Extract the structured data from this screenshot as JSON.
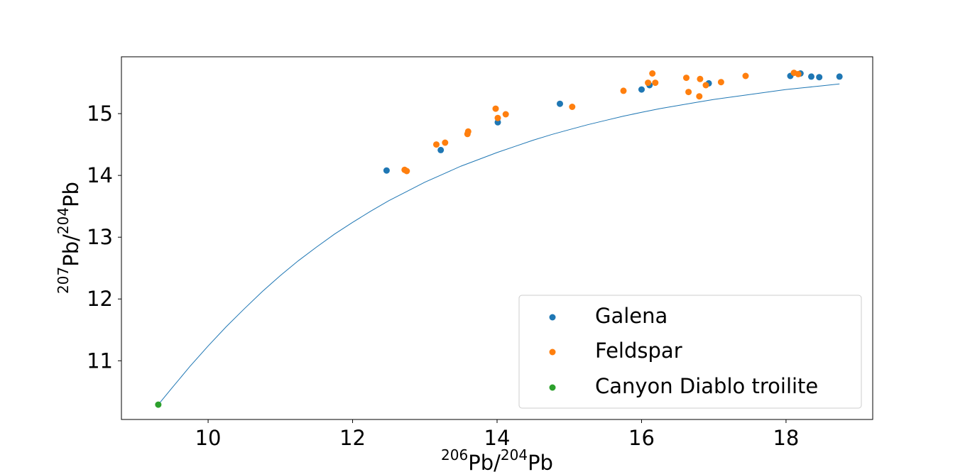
{
  "chart_data": {
    "type": "scatter",
    "xlabel": {
      "iso_top": "206",
      "base_top": "Pb/",
      "iso_bottom": "204",
      "base_bottom": "Pb"
    },
    "ylabel": {
      "iso_top": "207",
      "base_top": "Pb/",
      "iso_bottom": "204",
      "base_bottom": "Pb"
    },
    "xlim": [
      8.8,
      19.2
    ],
    "ylim": [
      10.05,
      15.92
    ],
    "x_ticks": [
      10,
      12,
      14,
      16,
      18
    ],
    "y_ticks": [
      11,
      12,
      13,
      14,
      15
    ],
    "grid": false,
    "legend_position": "lower-right",
    "series": [
      {
        "name": "Galena",
        "color": "#1f77b4",
        "points": [
          [
            12.47,
            14.08
          ],
          [
            13.22,
            14.41
          ],
          [
            14.01,
            14.86
          ],
          [
            14.87,
            15.16
          ],
          [
            16.0,
            15.39
          ],
          [
            16.11,
            15.46
          ],
          [
            16.93,
            15.49
          ],
          [
            18.06,
            15.61
          ],
          [
            18.2,
            15.65
          ],
          [
            18.35,
            15.6
          ],
          [
            18.46,
            15.59
          ],
          [
            18.74,
            15.6
          ]
        ]
      },
      {
        "name": "Feldspar",
        "color": "#ff7f0e",
        "points": [
          [
            12.72,
            14.09
          ],
          [
            12.75,
            14.07
          ],
          [
            13.16,
            14.5
          ],
          [
            13.28,
            14.53
          ],
          [
            13.59,
            14.67
          ],
          [
            13.6,
            14.71
          ],
          [
            13.98,
            15.08
          ],
          [
            14.01,
            14.93
          ],
          [
            14.12,
            14.99
          ],
          [
            15.04,
            15.11
          ],
          [
            15.75,
            15.37
          ],
          [
            16.09,
            15.5
          ],
          [
            16.15,
            15.65
          ],
          [
            16.19,
            15.5
          ],
          [
            16.62,
            15.58
          ],
          [
            16.65,
            15.35
          ],
          [
            16.8,
            15.28
          ],
          [
            16.81,
            15.56
          ],
          [
            16.89,
            15.46
          ],
          [
            17.1,
            15.51
          ],
          [
            17.44,
            15.61
          ],
          [
            18.11,
            15.66
          ],
          [
            18.17,
            15.64
          ]
        ]
      },
      {
        "name": "Canyon Diablo troilite",
        "color": "#2ca02c",
        "points": [
          [
            9.31,
            10.29
          ]
        ]
      }
    ],
    "curve": {
      "color": "#1f77b4",
      "points": [
        [
          9.31,
          10.29
        ],
        [
          9.5,
          10.56
        ],
        [
          9.75,
          10.91
        ],
        [
          10.0,
          11.24
        ],
        [
          10.25,
          11.55
        ],
        [
          10.5,
          11.84
        ],
        [
          10.75,
          12.12
        ],
        [
          11.0,
          12.38
        ],
        [
          11.25,
          12.62
        ],
        [
          11.5,
          12.84
        ],
        [
          11.75,
          13.05
        ],
        [
          12.0,
          13.24
        ],
        [
          12.25,
          13.42
        ],
        [
          12.5,
          13.59
        ],
        [
          12.75,
          13.74
        ],
        [
          13.0,
          13.89
        ],
        [
          13.25,
          14.02
        ],
        [
          13.5,
          14.15
        ],
        [
          13.75,
          14.26
        ],
        [
          14.0,
          14.37
        ],
        [
          14.25,
          14.47
        ],
        [
          14.5,
          14.57
        ],
        [
          14.75,
          14.66
        ],
        [
          15.0,
          14.74
        ],
        [
          15.25,
          14.82
        ],
        [
          15.5,
          14.89
        ],
        [
          15.75,
          14.96
        ],
        [
          16.0,
          15.02
        ],
        [
          16.25,
          15.08
        ],
        [
          16.5,
          15.13
        ],
        [
          16.75,
          15.18
        ],
        [
          17.0,
          15.23
        ],
        [
          17.25,
          15.27
        ],
        [
          17.5,
          15.31
        ],
        [
          17.75,
          15.35
        ],
        [
          18.0,
          15.39
        ],
        [
          18.25,
          15.42
        ],
        [
          18.5,
          15.45
        ],
        [
          18.74,
          15.48
        ]
      ]
    }
  }
}
